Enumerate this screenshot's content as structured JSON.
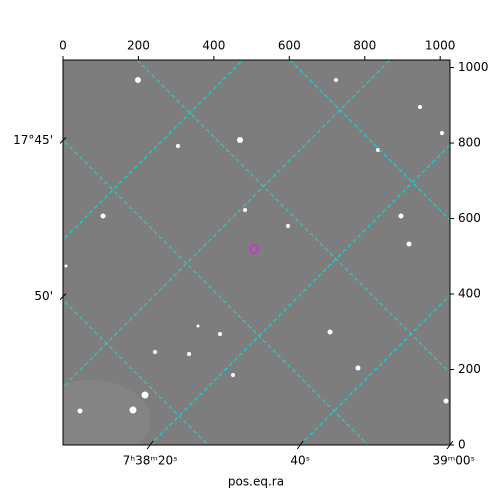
{
  "chart_data": {
    "type": "image",
    "xlabel": "pos.eq.ra",
    "xlim": [
      0,
      1026
    ],
    "ylim": [
      0,
      1020
    ],
    "xticks": [
      0,
      200,
      400,
      600,
      800,
      1000
    ],
    "yticks": [
      0,
      200,
      400,
      600,
      800,
      1000
    ],
    "ra_ticks": [
      {
        "value": 231,
        "label": "7ʰ38ᵐ20ˢ"
      },
      {
        "value": 629,
        "label": "40ˢ"
      },
      {
        "value": 1026,
        "label": "39ᵐ00ˢ"
      }
    ],
    "dec_ticks": [
      {
        "value": 807,
        "label": "17°45'"
      },
      {
        "value": 393,
        "label": "50'"
      }
    ]
  }
}
